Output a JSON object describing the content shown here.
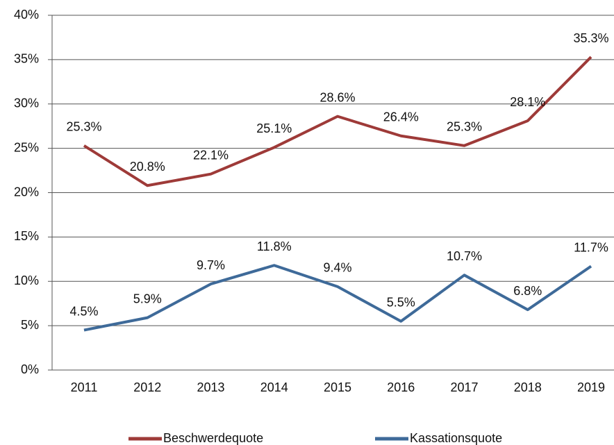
{
  "chart_data": {
    "type": "line",
    "categories": [
      "2011",
      "2012",
      "2013",
      "2014",
      "2015",
      "2016",
      "2017",
      "2018",
      "2019"
    ],
    "series": [
      {
        "name": "Beschwerdequote",
        "color": "#9e3a38",
        "values": [
          25.3,
          20.8,
          22.1,
          25.1,
          28.6,
          26.4,
          25.3,
          28.1,
          35.3
        ],
        "value_labels": [
          "25.3%",
          "20.8%",
          "22.1%",
          "25.1%",
          "28.6%",
          "26.4%",
          "25.3%",
          "28.1%",
          "35.3%"
        ]
      },
      {
        "name": "Kassationsquote",
        "color": "#3e6a99",
        "values": [
          4.5,
          5.9,
          9.7,
          11.8,
          9.4,
          5.5,
          10.7,
          6.8,
          11.7
        ],
        "value_labels": [
          "4.5%",
          "5.9%",
          "9.7%",
          "11.8%",
          "9.4%",
          "5.5%",
          "10.7%",
          "6.8%",
          "11.7%"
        ]
      }
    ],
    "ylim": [
      0,
      40
    ],
    "yticks": [
      {
        "value": 0,
        "label": "0%"
      },
      {
        "value": 5,
        "label": "5%"
      },
      {
        "value": 10,
        "label": "10%"
      },
      {
        "value": 15,
        "label": "15%"
      },
      {
        "value": 20,
        "label": "20%"
      },
      {
        "value": 25,
        "label": "25%"
      },
      {
        "value": 30,
        "label": "30%"
      },
      {
        "value": 35,
        "label": "35%"
      },
      {
        "value": 40,
        "label": "40%"
      }
    ],
    "grid": true,
    "legend": "bottom"
  }
}
